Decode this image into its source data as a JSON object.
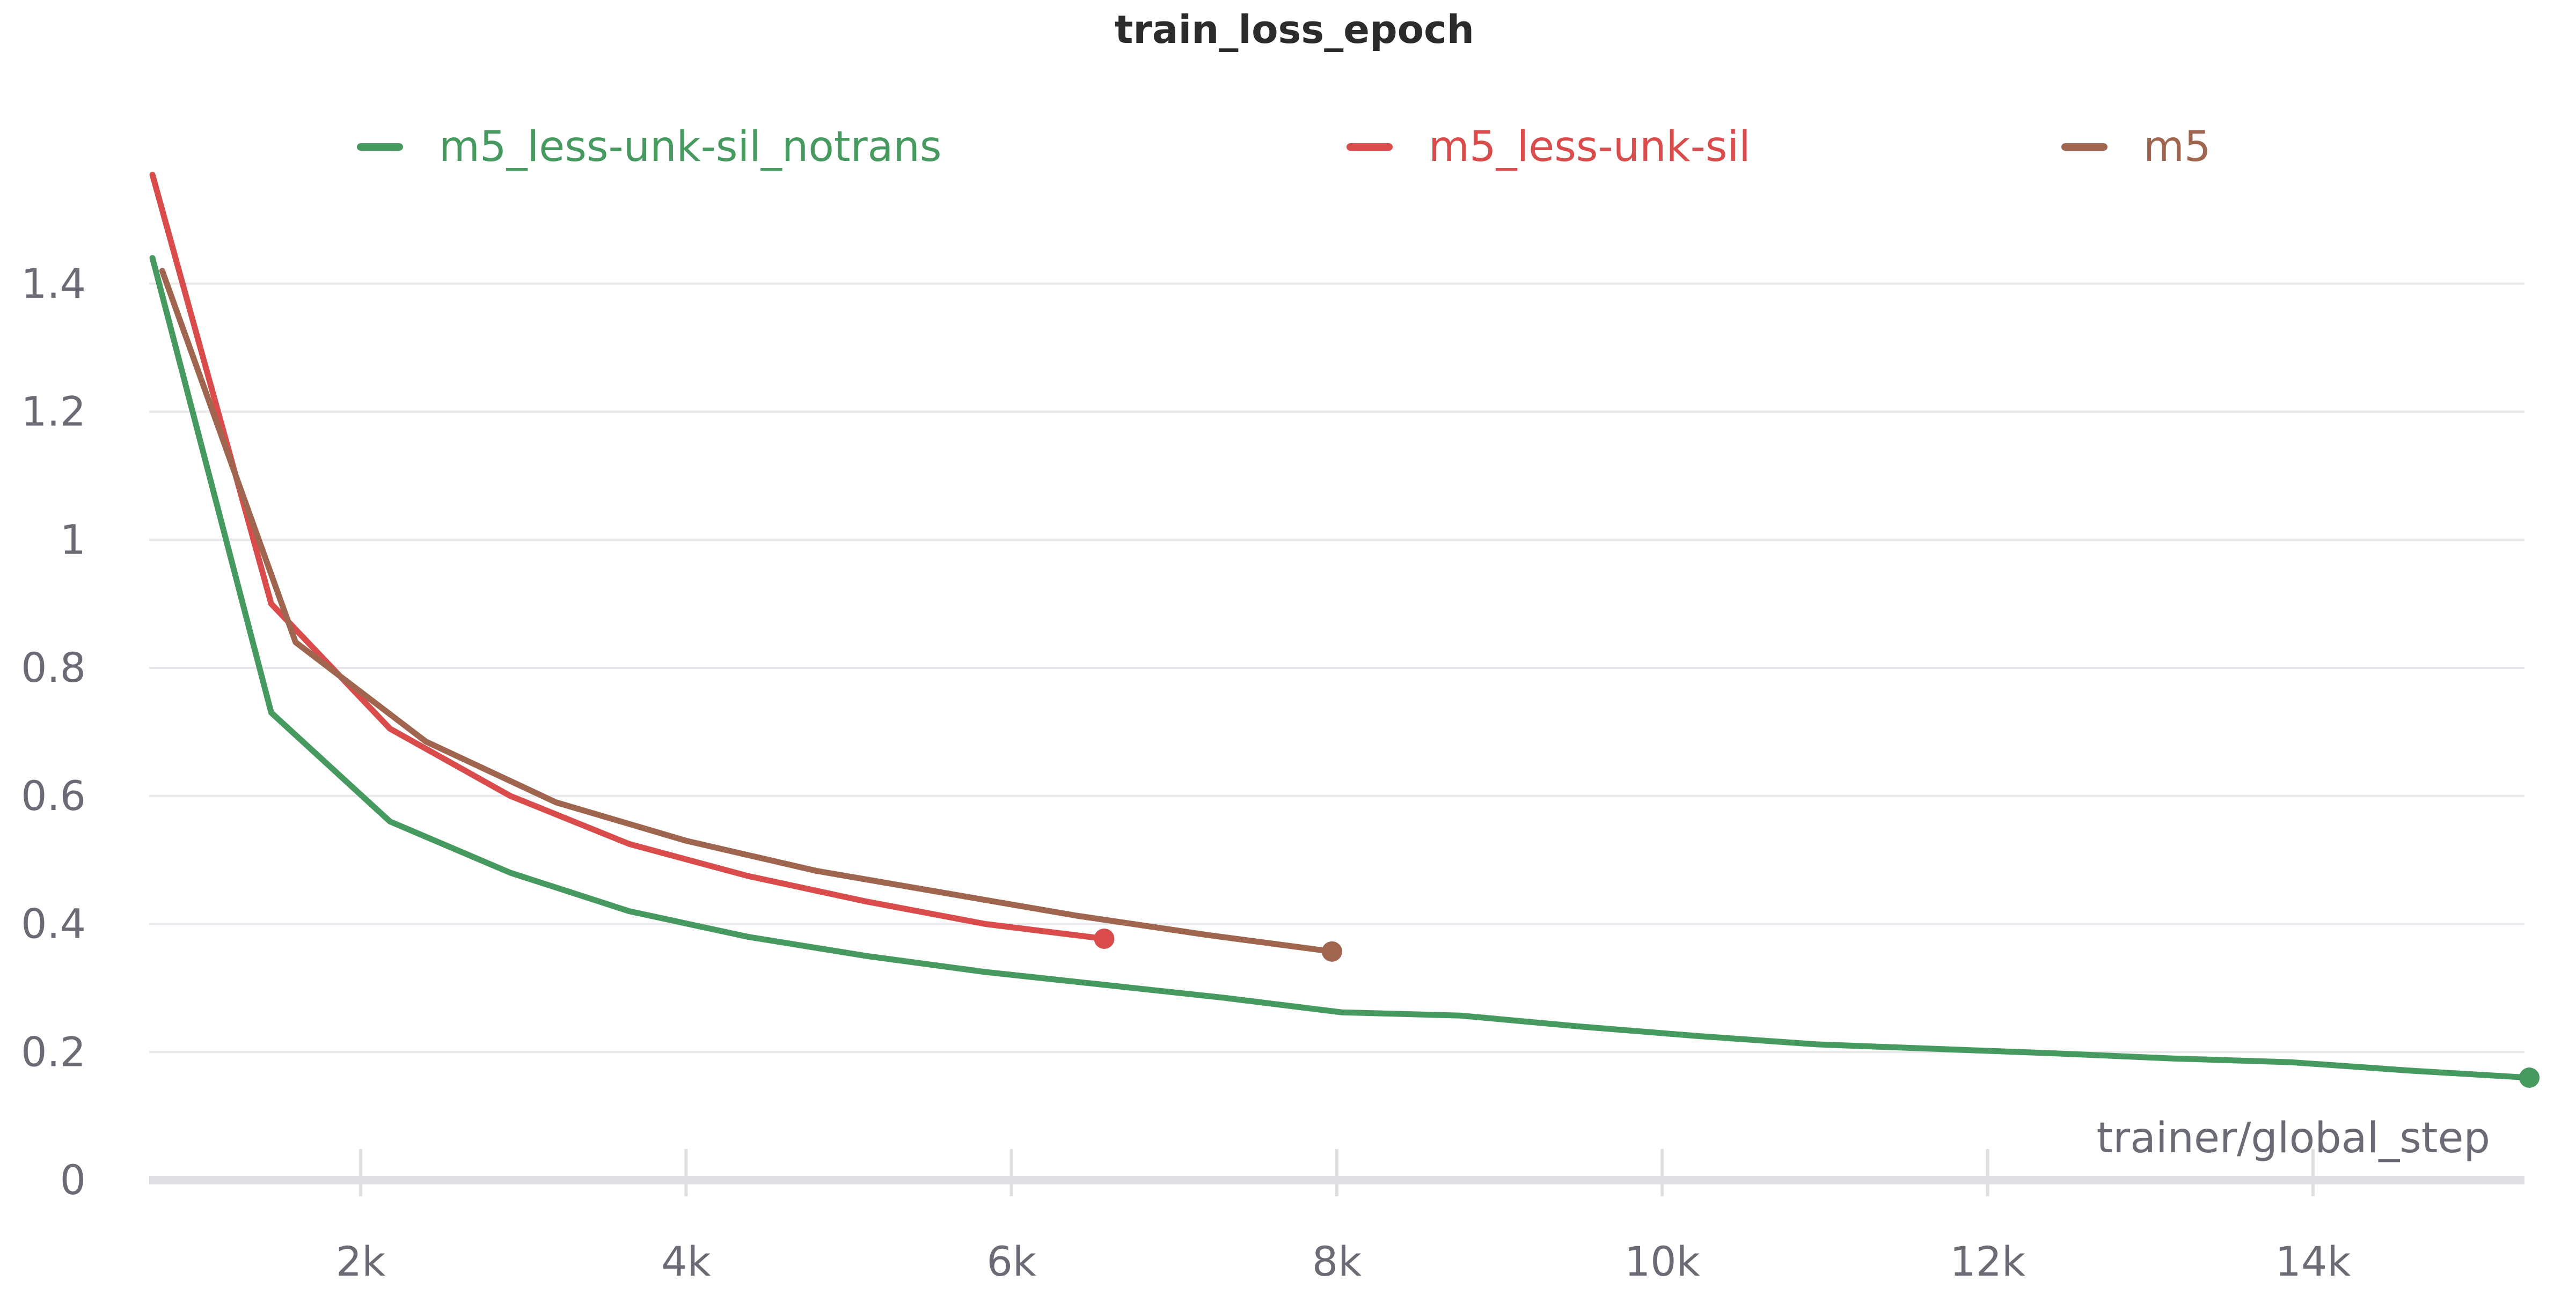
{
  "chart_data": {
    "type": "line",
    "title": "train_loss_epoch",
    "xlabel": "trainer/global_step",
    "ylabel": "",
    "xlim": [
      700,
      15300
    ],
    "ylim": [
      0,
      1.6
    ],
    "grid": true,
    "legend_position": "top",
    "x_ticks": [
      {
        "value": 2000,
        "label": "2k"
      },
      {
        "value": 4000,
        "label": "4k"
      },
      {
        "value": 6000,
        "label": "6k"
      },
      {
        "value": 8000,
        "label": "8k"
      },
      {
        "value": 10000,
        "label": "10k"
      },
      {
        "value": 12000,
        "label": "12k"
      },
      {
        "value": 14000,
        "label": "14k"
      }
    ],
    "y_ticks": [
      {
        "value": 0,
        "label": "0"
      },
      {
        "value": 0.2,
        "label": "0.2"
      },
      {
        "value": 0.4,
        "label": "0.4"
      },
      {
        "value": 0.6,
        "label": "0.6"
      },
      {
        "value": 0.8,
        "label": "0.8"
      },
      {
        "value": 1,
        "label": "1"
      },
      {
        "value": 1.2,
        "label": "1.2"
      },
      {
        "value": 1.4,
        "label": "1.4"
      }
    ],
    "series": [
      {
        "name": "m5_less-unk-sil_notrans",
        "color": "#479a5f",
        "x": [
          720,
          1450,
          2180,
          2920,
          3650,
          4380,
          5110,
          5840,
          6570,
          7300,
          8030,
          8760,
          9490,
          10220,
          10950,
          11680,
          12410,
          13140,
          13870,
          14600,
          15330
        ],
        "y": [
          1.44,
          0.73,
          0.56,
          0.48,
          0.42,
          0.38,
          0.35,
          0.325,
          0.305,
          0.285,
          0.262,
          0.257,
          0.24,
          0.225,
          0.212,
          0.205,
          0.198,
          0.19,
          0.184,
          0.171,
          0.16
        ]
      },
      {
        "name": "m5_less-unk-sil",
        "color": "#da4c4c",
        "x": [
          720,
          1450,
          2180,
          2920,
          3650,
          4380,
          5110,
          5840,
          6570
        ],
        "y": [
          1.57,
          0.9,
          0.705,
          0.6,
          0.525,
          0.475,
          0.435,
          0.4,
          0.377
        ]
      },
      {
        "name": "m5",
        "color": "#a0654f",
        "x": [
          780,
          1600,
          2400,
          3200,
          4000,
          4800,
          5600,
          6400,
          7200,
          7970
        ],
        "y": [
          1.42,
          0.84,
          0.685,
          0.59,
          0.53,
          0.483,
          0.448,
          0.413,
          0.383,
          0.357
        ]
      }
    ]
  }
}
